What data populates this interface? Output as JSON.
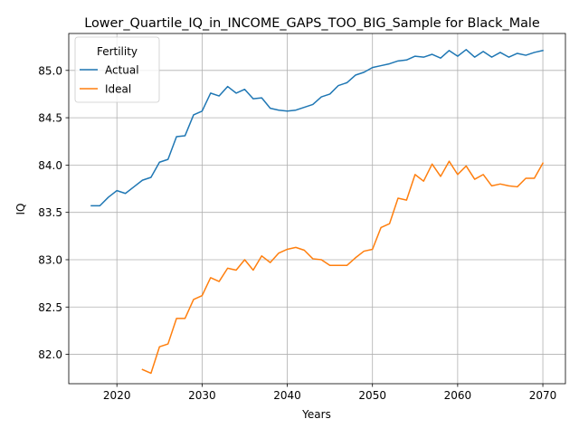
{
  "chart_data": {
    "type": "line",
    "title": "Lower_Quartile_IQ_in_INCOME_GAPS_TOO_BIG_Sample for Black_Male",
    "xlabel": "Years",
    "ylabel": "IQ",
    "xlim": [
      2014.35,
      2072.65
    ],
    "ylim": [
      81.69,
      85.39
    ],
    "xticks": [
      2020,
      2030,
      2040,
      2050,
      2060,
      2070
    ],
    "yticks": [
      82.0,
      82.5,
      83.0,
      83.5,
      84.0,
      84.5,
      85.0
    ],
    "xtick_labels": [
      "2020",
      "2030",
      "2040",
      "2050",
      "2060",
      "2070"
    ],
    "ytick_labels": [
      "82.0",
      "82.5",
      "83.0",
      "83.5",
      "84.0",
      "84.5",
      "85.0"
    ],
    "grid": true,
    "legend": {
      "title": "Fertility",
      "position": "top-left"
    },
    "series": [
      {
        "name": "Actual",
        "color": "#1f77b4",
        "x": [
          2017,
          2018,
          2019,
          2020,
          2021,
          2022,
          2023,
          2024,
          2025,
          2026,
          2027,
          2028,
          2029,
          2030,
          2031,
          2032,
          2033,
          2034,
          2035,
          2036,
          2037,
          2038,
          2039,
          2040,
          2041,
          2042,
          2043,
          2044,
          2045,
          2046,
          2047,
          2048,
          2049,
          2050,
          2051,
          2052,
          2053,
          2054,
          2055,
          2056,
          2057,
          2058,
          2059,
          2060,
          2061,
          2062,
          2063,
          2064,
          2065,
          2066,
          2067,
          2068,
          2069,
          2070
        ],
        "values": [
          83.57,
          83.57,
          83.66,
          83.73,
          83.7,
          83.77,
          83.84,
          83.87,
          84.03,
          84.06,
          84.3,
          84.31,
          84.53,
          84.57,
          84.76,
          84.73,
          84.83,
          84.76,
          84.8,
          84.7,
          84.71,
          84.6,
          84.58,
          84.57,
          84.58,
          84.61,
          84.64,
          84.72,
          84.75,
          84.84,
          84.87,
          84.95,
          84.98,
          85.03,
          85.05,
          85.07,
          85.1,
          85.11,
          85.15,
          85.14,
          85.17,
          85.13,
          85.21,
          85.15,
          85.22,
          85.14,
          85.2,
          85.14,
          85.19,
          85.14,
          85.18,
          85.16,
          85.19,
          85.21
        ]
      },
      {
        "name": "Ideal",
        "color": "#ff7f0e",
        "x": [
          2023,
          2024,
          2025,
          2026,
          2027,
          2028,
          2029,
          2030,
          2031,
          2032,
          2033,
          2034,
          2035,
          2036,
          2037,
          2038,
          2039,
          2040,
          2041,
          2042,
          2043,
          2044,
          2045,
          2046,
          2047,
          2048,
          2049,
          2050,
          2051,
          2052,
          2053,
          2054,
          2055,
          2056,
          2057,
          2058,
          2059,
          2060,
          2061,
          2062,
          2063,
          2064,
          2065,
          2066,
          2067,
          2068,
          2069,
          2070
        ],
        "values": [
          81.84,
          81.8,
          82.08,
          82.11,
          82.38,
          82.38,
          82.58,
          82.62,
          82.81,
          82.77,
          82.91,
          82.89,
          83.0,
          82.89,
          83.04,
          82.97,
          83.07,
          83.11,
          83.13,
          83.1,
          83.01,
          83.0,
          82.94,
          82.94,
          82.94,
          83.02,
          83.09,
          83.11,
          83.34,
          83.38,
          83.65,
          83.63,
          83.9,
          83.83,
          84.01,
          83.88,
          84.04,
          83.9,
          83.99,
          83.85,
          83.9,
          83.78,
          83.8,
          83.78,
          83.77,
          83.86,
          83.86,
          84.02
        ]
      }
    ]
  }
}
